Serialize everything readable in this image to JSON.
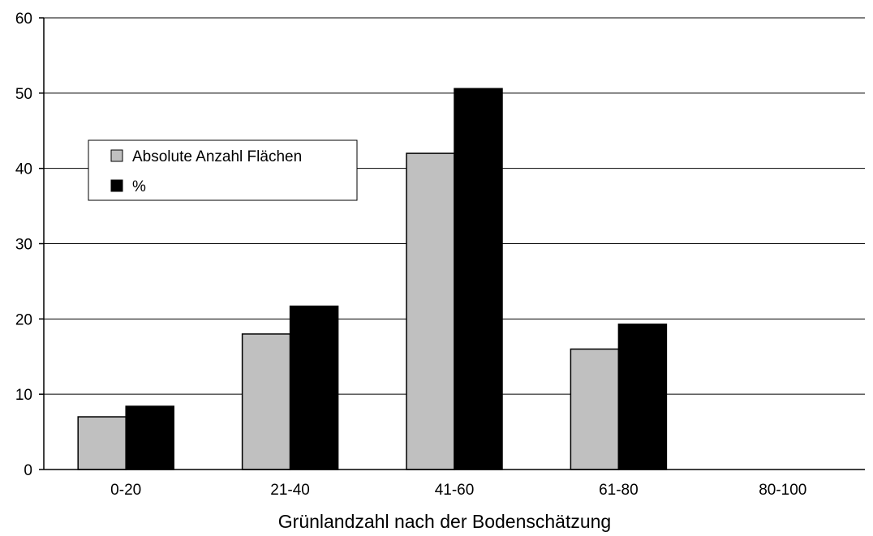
{
  "chart_data": {
    "type": "bar",
    "title": "",
    "xlabel": "Grünlandzahl nach der Bodenschätzung",
    "ylabel": "",
    "ylim": [
      0,
      60
    ],
    "yticks": [
      0,
      10,
      20,
      30,
      40,
      50,
      60
    ],
    "grid": "horizontal",
    "legend_position": "upper-left",
    "categories": [
      "0-20",
      "21-40",
      "41-60",
      "61-80",
      "80-100"
    ],
    "series": [
      {
        "name": "Absolute Anzahl Flächen",
        "color": "#c0c0c0",
        "values": [
          7,
          18,
          42,
          16,
          0
        ]
      },
      {
        "name": "%",
        "color": "#000000",
        "values": [
          8.4,
          21.7,
          50.6,
          19.3,
          0
        ]
      }
    ]
  }
}
